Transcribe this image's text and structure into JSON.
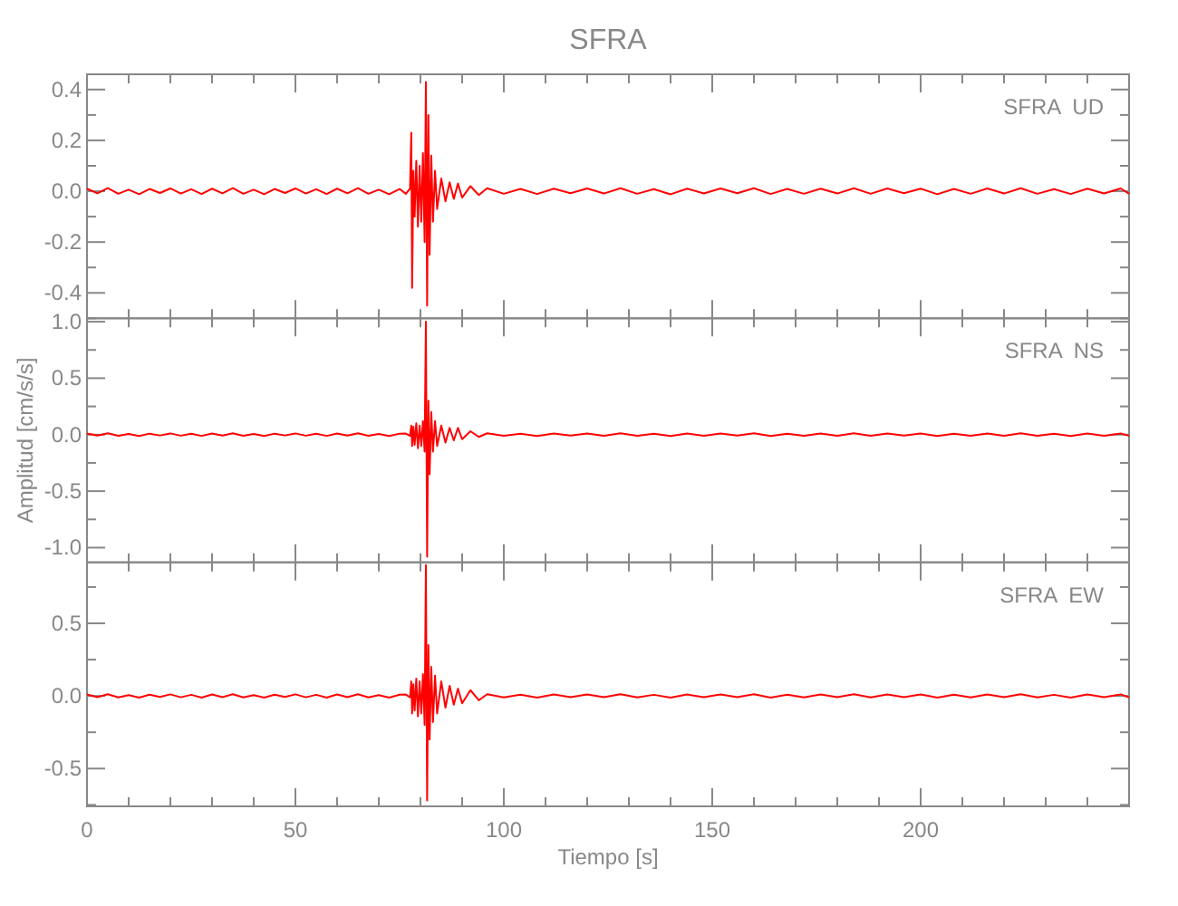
{
  "chart_data": [
    {
      "type": "line",
      "title": "SFRA",
      "annotations": [
        "SFRA  UD"
      ],
      "tick_labels": "y",
      "x": [
        0,
        2.5,
        5,
        7.5,
        10,
        12.5,
        15,
        17.5,
        20,
        22.5,
        25,
        27.5,
        30,
        32.5,
        35,
        37.5,
        40,
        42.5,
        45,
        47.5,
        50,
        52.5,
        55,
        57.5,
        60,
        62.5,
        65,
        67.5,
        70,
        72.5,
        75,
        76.5,
        77.5,
        77.8,
        78.0,
        78.3,
        78.6,
        79.0,
        79.4,
        79.8,
        80.2,
        80.6,
        81.0,
        81.3,
        81.6,
        81.9,
        82.2,
        82.6,
        83.0,
        83.5,
        84.0,
        85.0,
        86.0,
        87.0,
        88.0,
        89.0,
        90.0,
        92.0,
        94.0,
        96,
        100,
        104,
        108,
        112,
        116,
        120,
        124,
        128,
        132,
        136,
        140,
        144,
        148,
        152,
        156,
        160,
        164,
        168,
        172,
        176,
        180,
        184,
        188,
        192,
        196,
        200,
        204,
        208,
        212,
        216,
        220,
        224,
        228,
        232,
        236,
        240,
        244,
        248,
        250
      ],
      "series": [
        {
          "color": "#ff0000",
          "values": [
            0.01,
            -0.008,
            0.012,
            -0.01,
            0.006,
            -0.012,
            0.009,
            -0.007,
            0.011,
            -0.009,
            0.008,
            -0.011,
            0.01,
            -0.008,
            0.012,
            -0.01,
            0.006,
            -0.012,
            0.009,
            -0.007,
            0.011,
            -0.009,
            0.008,
            -0.011,
            0.01,
            -0.008,
            0.012,
            -0.01,
            0.006,
            -0.012,
            0.009,
            -0.01,
            0.01,
            0.23,
            -0.38,
            0.08,
            -0.1,
            0.12,
            -0.14,
            0.1,
            -0.12,
            0.15,
            -0.2,
            0.43,
            -0.45,
            0.3,
            -0.25,
            0.14,
            -0.12,
            0.08,
            -0.07,
            0.05,
            -0.04,
            0.035,
            -0.03,
            0.03,
            -0.025,
            0.02,
            -0.015,
            0.012,
            -0.01,
            0.009,
            -0.011,
            0.01,
            -0.008,
            0.011,
            -0.009,
            0.012,
            -0.01,
            0.008,
            -0.012,
            0.01,
            -0.009,
            0.011,
            -0.008,
            0.012,
            -0.011,
            0.009,
            -0.01,
            0.01,
            -0.009,
            0.012,
            -0.01,
            0.011,
            -0.008,
            0.01,
            -0.012,
            0.009,
            -0.01,
            0.011,
            -0.009,
            0.012,
            -0.01,
            0.008,
            -0.011,
            0.01,
            -0.009,
            0.011,
            -0.01
          ]
        }
      ],
      "xlim": [
        0,
        250
      ],
      "xticks": [
        0,
        {
          "value": 10,
          "label": null
        },
        {
          "value": 20,
          "label": null
        },
        {
          "value": 30,
          "label": null
        },
        {
          "value": 40,
          "label": null
        },
        50,
        {
          "value": 60,
          "label": null
        },
        {
          "value": 70,
          "label": null
        },
        {
          "value": 80,
          "label": null
        },
        {
          "value": 90,
          "label": null
        },
        100,
        {
          "value": 110,
          "label": null
        },
        {
          "value": 120,
          "label": null
        },
        {
          "value": 130,
          "label": null
        },
        {
          "value": 140,
          "label": null
        },
        150,
        {
          "value": 160,
          "label": null
        },
        {
          "value": 170,
          "label": null
        },
        {
          "value": 180,
          "label": null
        },
        {
          "value": 190,
          "label": null
        },
        200,
        {
          "value": 210,
          "label": null
        },
        {
          "value": 220,
          "label": null
        },
        {
          "value": 230,
          "label": null
        },
        {
          "value": 240,
          "label": null
        }
      ],
      "ylim": [
        -0.5,
        0.46
      ],
      "yticks": [
        {
          "value": -0.5,
          "label": null
        },
        -0.4,
        {
          "value": -0.3,
          "label": null
        },
        -0.2,
        {
          "value": -0.1,
          "label": null
        },
        {
          "value": 0,
          "label": "0.0"
        },
        {
          "value": 0.1,
          "label": null
        },
        0.2,
        {
          "value": 0.3,
          "label": null
        },
        0.4
      ]
    },
    {
      "type": "line",
      "ylabel": "Amplitud [cm/s/s]",
      "annotations": [
        "SFRA  NS"
      ],
      "tick_labels": "y",
      "x": [
        0,
        2.5,
        5,
        7.5,
        10,
        12.5,
        15,
        17.5,
        20,
        22.5,
        25,
        27.5,
        30,
        32.5,
        35,
        37.5,
        40,
        42.5,
        45,
        47.5,
        50,
        52.5,
        55,
        57.5,
        60,
        62.5,
        65,
        67.5,
        70,
        72.5,
        75,
        76.5,
        77.5,
        77.8,
        78.0,
        78.3,
        78.6,
        79.0,
        79.4,
        79.8,
        80.2,
        80.6,
        81.0,
        81.3,
        81.6,
        81.9,
        82.2,
        82.6,
        83.0,
        83.5,
        84.0,
        85.0,
        86.0,
        87.0,
        88.0,
        89.0,
        90.0,
        92.0,
        94.0,
        96,
        100,
        104,
        108,
        112,
        116,
        120,
        124,
        128,
        132,
        136,
        140,
        144,
        148,
        152,
        156,
        160,
        164,
        168,
        172,
        176,
        180,
        184,
        188,
        192,
        196,
        200,
        204,
        208,
        212,
        216,
        220,
        224,
        228,
        232,
        236,
        240,
        244,
        248,
        250
      ],
      "series": [
        {
          "color": "#ff0000",
          "values": [
            0.01,
            -0.008,
            0.012,
            -0.01,
            0.006,
            -0.012,
            0.009,
            -0.007,
            0.011,
            -0.009,
            0.008,
            -0.011,
            0.01,
            -0.008,
            0.012,
            -0.01,
            0.006,
            -0.012,
            0.009,
            -0.007,
            0.011,
            -0.009,
            0.008,
            -0.011,
            0.01,
            -0.008,
            0.012,
            -0.01,
            0.006,
            -0.012,
            0.009,
            0.01,
            -0.01,
            0.08,
            -0.1,
            0.07,
            -0.09,
            0.1,
            -0.12,
            0.08,
            -0.1,
            0.12,
            -0.15,
            1.0,
            -1.08,
            0.3,
            -0.35,
            0.2,
            -0.15,
            0.12,
            -0.1,
            0.08,
            -0.07,
            0.06,
            -0.05,
            0.06,
            -0.04,
            0.03,
            -0.02,
            0.012,
            -0.01,
            0.009,
            -0.011,
            0.01,
            -0.008,
            0.011,
            -0.009,
            0.012,
            -0.01,
            0.008,
            -0.012,
            0.01,
            -0.009,
            0.011,
            -0.008,
            0.012,
            -0.011,
            0.009,
            -0.01,
            0.01,
            -0.009,
            0.012,
            -0.01,
            0.011,
            -0.008,
            0.01,
            -0.012,
            0.009,
            -0.01,
            0.011,
            -0.009,
            0.012,
            -0.01,
            0.008,
            -0.011,
            0.01,
            -0.009,
            0.011,
            -0.01
          ]
        }
      ],
      "xlim": [
        0,
        250
      ],
      "xticks": [
        0,
        {
          "value": 10,
          "label": null
        },
        {
          "value": 20,
          "label": null
        },
        {
          "value": 30,
          "label": null
        },
        {
          "value": 40,
          "label": null
        },
        50,
        {
          "value": 60,
          "label": null
        },
        {
          "value": 70,
          "label": null
        },
        {
          "value": 80,
          "label": null
        },
        {
          "value": 90,
          "label": null
        },
        100,
        {
          "value": 110,
          "label": null
        },
        {
          "value": 120,
          "label": null
        },
        {
          "value": 130,
          "label": null
        },
        {
          "value": 140,
          "label": null
        },
        150,
        {
          "value": 160,
          "label": null
        },
        {
          "value": 170,
          "label": null
        },
        {
          "value": 180,
          "label": null
        },
        {
          "value": 190,
          "label": null
        },
        200,
        {
          "value": 210,
          "label": null
        },
        {
          "value": 220,
          "label": null
        },
        {
          "value": 230,
          "label": null
        },
        {
          "value": 240,
          "label": null
        }
      ],
      "ylim": [
        -1.13,
        1.03
      ],
      "yticks": [
        {
          "value": -1,
          "label": "-1.0"
        },
        {
          "value": -0.75,
          "label": null
        },
        -0.5,
        {
          "value": -0.25,
          "label": null
        },
        {
          "value": 0,
          "label": "0.0"
        },
        {
          "value": 0.25,
          "label": null
        },
        0.5,
        {
          "value": 0.75,
          "label": null
        },
        {
          "value": 1,
          "label": "1.0"
        }
      ]
    },
    {
      "type": "line",
      "xlabel": "Tiempo [s]",
      "annotations": [
        "SFRA  EW"
      ],
      "x": [
        0,
        2.5,
        5,
        7.5,
        10,
        12.5,
        15,
        17.5,
        20,
        22.5,
        25,
        27.5,
        30,
        32.5,
        35,
        37.5,
        40,
        42.5,
        45,
        47.5,
        50,
        52.5,
        55,
        57.5,
        60,
        62.5,
        65,
        67.5,
        70,
        72.5,
        75,
        76.5,
        77.5,
        77.8,
        78.0,
        78.3,
        78.6,
        79.0,
        79.4,
        79.8,
        80.2,
        80.6,
        81.0,
        81.3,
        81.6,
        81.9,
        82.2,
        82.6,
        83.0,
        83.5,
        84.0,
        85.0,
        86.0,
        87.0,
        88.0,
        89.0,
        90.0,
        92.0,
        94.0,
        96,
        100,
        104,
        108,
        112,
        116,
        120,
        124,
        128,
        132,
        136,
        140,
        144,
        148,
        152,
        156,
        160,
        164,
        168,
        172,
        176,
        180,
        184,
        188,
        192,
        196,
        200,
        204,
        208,
        212,
        216,
        220,
        224,
        228,
        232,
        236,
        240,
        244,
        248,
        250
      ],
      "series": [
        {
          "color": "#ff0000",
          "values": [
            0.01,
            -0.008,
            0.012,
            -0.01,
            0.006,
            -0.012,
            0.009,
            -0.007,
            0.011,
            -0.009,
            0.008,
            -0.011,
            0.01,
            -0.008,
            0.012,
            -0.01,
            0.006,
            -0.012,
            0.009,
            -0.007,
            0.011,
            -0.009,
            0.008,
            -0.011,
            0.01,
            -0.008,
            0.012,
            -0.01,
            0.006,
            -0.012,
            0.009,
            0.01,
            -0.01,
            0.1,
            -0.12,
            0.08,
            -0.1,
            0.12,
            -0.14,
            0.1,
            -0.12,
            0.15,
            -0.2,
            0.9,
            -0.72,
            0.35,
            -0.3,
            0.2,
            -0.18,
            0.14,
            -0.12,
            0.1,
            -0.08,
            0.07,
            -0.06,
            0.05,
            -0.05,
            0.04,
            -0.03,
            0.012,
            -0.01,
            0.009,
            -0.011,
            0.01,
            -0.008,
            0.011,
            -0.009,
            0.012,
            -0.01,
            0.008,
            -0.012,
            0.01,
            -0.009,
            0.011,
            -0.008,
            0.012,
            -0.011,
            0.009,
            -0.01,
            0.01,
            -0.009,
            0.012,
            -0.01,
            0.011,
            -0.008,
            0.01,
            -0.012,
            0.009,
            -0.01,
            0.011,
            -0.009,
            0.012,
            -0.01,
            0.008,
            -0.011,
            0.01,
            -0.009,
            0.011,
            -0.01
          ]
        }
      ],
      "xlim": [
        0,
        250
      ],
      "xticks": [
        0,
        {
          "value": 10,
          "label": null
        },
        {
          "value": 20,
          "label": null
        },
        {
          "value": 30,
          "label": null
        },
        {
          "value": 40,
          "label": null
        },
        50,
        {
          "value": 60,
          "label": null
        },
        {
          "value": 70,
          "label": null
        },
        {
          "value": 80,
          "label": null
        },
        {
          "value": 90,
          "label": null
        },
        100,
        {
          "value": 110,
          "label": null
        },
        {
          "value": 120,
          "label": null
        },
        {
          "value": 130,
          "label": null
        },
        {
          "value": 140,
          "label": null
        },
        150,
        {
          "value": 160,
          "label": null
        },
        {
          "value": 170,
          "label": null
        },
        {
          "value": 180,
          "label": null
        },
        {
          "value": 190,
          "label": null
        },
        200,
        {
          "value": 210,
          "label": null
        },
        {
          "value": 220,
          "label": null
        },
        {
          "value": 230,
          "label": null
        },
        {
          "value": 240,
          "label": null
        }
      ],
      "ylim": [
        -0.76,
        0.92
      ],
      "yticks": [
        {
          "value": -0.75,
          "label": null
        },
        -0.5,
        {
          "value": -0.25,
          "label": null
        },
        {
          "value": 0,
          "label": "0.0"
        },
        {
          "value": 0.25,
          "label": null
        },
        0.5,
        {
          "value": 0.75,
          "label": null
        }
      ]
    }
  ]
}
